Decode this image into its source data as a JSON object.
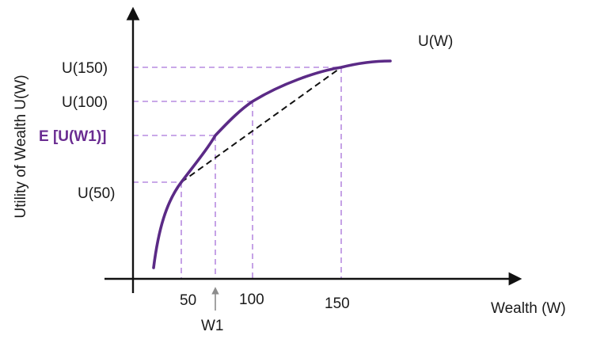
{
  "diagram": {
    "curve_label": "U(W)",
    "y_axis_label": "Utility of Wealth  U(W)",
    "x_axis_label": "Wealth (W)",
    "y_ticks": {
      "u150": "U(150)",
      "u100": "U(100)",
      "expected": "E [U(W1)]",
      "u50": "U(50)"
    },
    "x_ticks": {
      "w50": "50",
      "w100": "100",
      "w150": "150"
    },
    "pointer_label": "W1",
    "colors": {
      "curve": "#5b2a86",
      "guides": "#b78be0",
      "accent_label": "#6a2c91",
      "axes": "#111111"
    }
  }
}
